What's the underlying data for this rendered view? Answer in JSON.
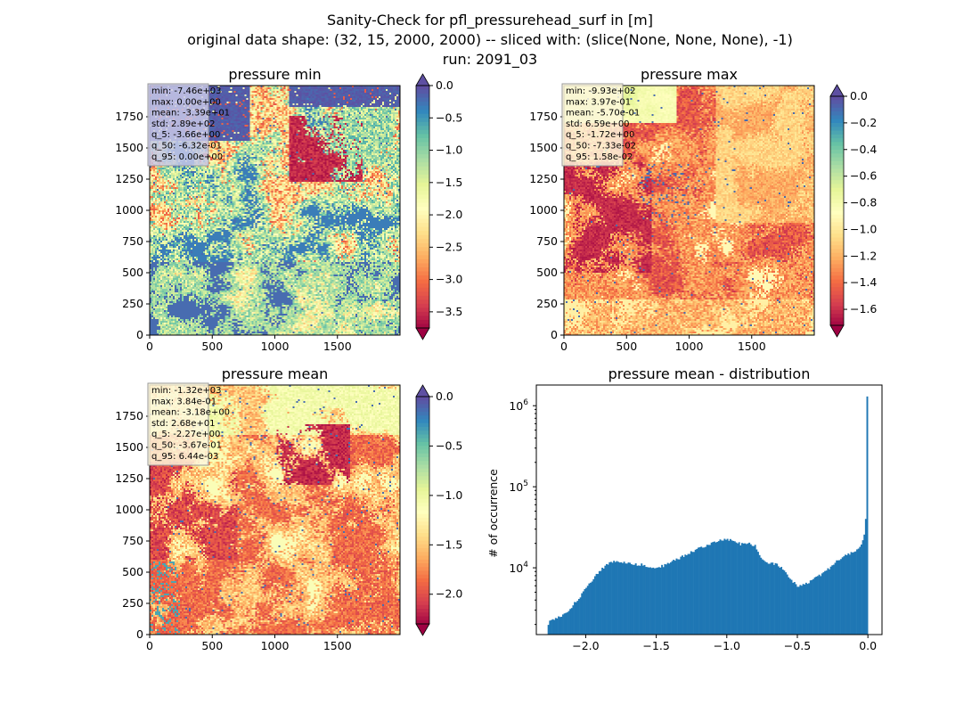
{
  "figure": {
    "title_lines": [
      "Sanity-Check for pfl_pressurehead_surf in [m]",
      "original data shape: (32, 15, 2000, 2000) -- sliced with: (slice(None, None, None), -1)",
      "run: 2091_03"
    ]
  },
  "chart_data": [
    {
      "type": "heatmap",
      "title": "pressure min",
      "xlim": [
        0,
        2000
      ],
      "ylim": [
        0,
        2000
      ],
      "xticks": [
        "0",
        "500",
        "1000",
        "1500"
      ],
      "yticks": [
        "0",
        "250",
        "500",
        "750",
        "1000",
        "1250",
        "1500",
        "1750"
      ],
      "colorbar": {
        "cmap": "Spectral",
        "vmin": -3.75,
        "vmax": 0.0,
        "ticks": [
          "0.0",
          "-0.5",
          "-1.0",
          "-1.5",
          "-2.0",
          "-2.5",
          "-3.0",
          "-3.5"
        ],
        "extend": "both"
      },
      "stats": [
        "min: -7.46e+03",
        "max: 0.00e+00",
        "mean: -3.39e+01",
        "std: 2.89e+02",
        "q_5: -3.66e+00",
        "q_50: -6.32e-01",
        "q_95: 0.00e+00"
      ],
      "stats_box_color": "#c8c8e8"
    },
    {
      "type": "heatmap",
      "title": "pressure max",
      "xlim": [
        0,
        2000
      ],
      "ylim": [
        0,
        2000
      ],
      "xticks": [
        "0",
        "500",
        "1000",
        "1500"
      ],
      "yticks": [
        "0",
        "250",
        "500",
        "750",
        "1000",
        "1250",
        "1500",
        "1750"
      ],
      "colorbar": {
        "cmap": "Spectral",
        "vmin": -1.72,
        "vmax": 0.0,
        "ticks": [
          "0.0",
          "-0.2",
          "-0.4",
          "-0.6",
          "-0.8",
          "-1.0",
          "-1.2",
          "-1.4",
          "-1.6"
        ],
        "extend": "both"
      },
      "stats": [
        "min: -9.93e+02",
        "max: 3.97e-01",
        "mean: -5.70e-01",
        "std: 6.59e+00",
        "q_5: -1.72e+00",
        "q_50: -7.33e-02",
        "q_95: 1.58e-02"
      ],
      "stats_box_color": "#fdf7dc"
    },
    {
      "type": "heatmap",
      "title": "pressure mean",
      "xlim": [
        0,
        2000
      ],
      "ylim": [
        0,
        2000
      ],
      "xticks": [
        "0",
        "500",
        "1000",
        "1500"
      ],
      "yticks": [
        "0",
        "250",
        "500",
        "750",
        "1000",
        "1250",
        "1500",
        "1750"
      ],
      "colorbar": {
        "cmap": "Spectral",
        "vmin": -2.3,
        "vmax": 0.0,
        "ticks": [
          "0.0",
          "-0.5",
          "-1.0",
          "-1.5",
          "-2.0"
        ],
        "extend": "both"
      },
      "stats": [
        "min: -1.32e+03",
        "max: 3.84e-01",
        "mean: -3.18e+00",
        "std: 2.68e+01",
        "q_5: -2.27e+00",
        "q_50: -3.67e-01",
        "q_95: 6.44e-03"
      ],
      "stats_box_color": "#fdf7dc"
    },
    {
      "type": "bar",
      "title": "pressure mean - distribution",
      "ylabel": "# of occurrence",
      "xlim": [
        -2.35,
        0.1
      ],
      "ylim": [
        1500,
        1800000
      ],
      "yscale": "log",
      "xticks": [
        -2.0,
        -1.5,
        -1.0,
        -0.5,
        0.0
      ],
      "xtick_labels": [
        "−2.0",
        "−1.5",
        "−1.0",
        "−0.5",
        "0.0"
      ],
      "yticks": [
        10000,
        100000,
        1000000
      ],
      "bar_color": "#1f77b4",
      "bin_range": [
        -2.27,
        0.0
      ],
      "profile": [
        [
          -2.27,
          1900
        ],
        [
          -2.25,
          2300
        ],
        [
          -2.2,
          2400
        ],
        [
          -2.15,
          2700
        ],
        [
          -2.1,
          3300
        ],
        [
          -2.05,
          4200
        ],
        [
          -2.0,
          5500
        ],
        [
          -1.95,
          7200
        ],
        [
          -1.9,
          9200
        ],
        [
          -1.85,
          11000
        ],
        [
          -1.8,
          12000
        ],
        [
          -1.75,
          11800
        ],
        [
          -1.7,
          11500
        ],
        [
          -1.65,
          11000
        ],
        [
          -1.6,
          11000
        ],
        [
          -1.55,
          10300
        ],
        [
          -1.5,
          10000
        ],
        [
          -1.45,
          10600
        ],
        [
          -1.4,
          11800
        ],
        [
          -1.35,
          12800
        ],
        [
          -1.3,
          14200
        ],
        [
          -1.25,
          15800
        ],
        [
          -1.2,
          17200
        ],
        [
          -1.15,
          18800
        ],
        [
          -1.1,
          20000
        ],
        [
          -1.05,
          21500
        ],
        [
          -1.0,
          22500
        ],
        [
          -0.95,
          21500
        ],
        [
          -0.9,
          19500
        ],
        [
          -0.85,
          20000
        ],
        [
          -0.8,
          19000
        ],
        [
          -0.77,
          15000
        ],
        [
          -0.75,
          13000
        ],
        [
          -0.7,
          11500
        ],
        [
          -0.65,
          11000
        ],
        [
          -0.6,
          9500
        ],
        [
          -0.55,
          7200
        ],
        [
          -0.5,
          6000
        ],
        [
          -0.45,
          6300
        ],
        [
          -0.4,
          6900
        ],
        [
          -0.35,
          7900
        ],
        [
          -0.3,
          9000
        ],
        [
          -0.25,
          10800
        ],
        [
          -0.2,
          12800
        ],
        [
          -0.15,
          14500
        ],
        [
          -0.1,
          15500
        ],
        [
          -0.07,
          16500
        ],
        [
          -0.04,
          20000
        ],
        [
          -0.02,
          30000
        ],
        [
          -0.01,
          55000
        ],
        [
          0.0,
          1300000
        ]
      ]
    }
  ]
}
